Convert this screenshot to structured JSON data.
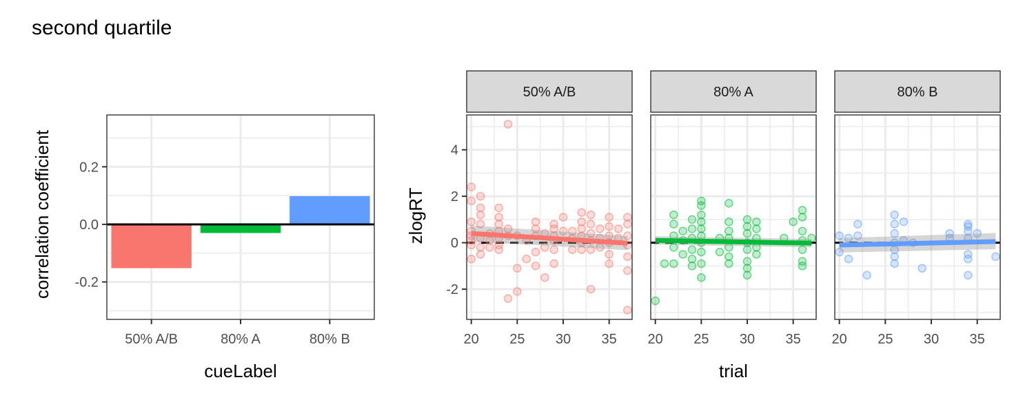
{
  "title": "second quartile",
  "colors": {
    "50% A/B": "#F8766D",
    "80% A": "#00BA38",
    "80% B": "#619CFF"
  },
  "chart_data": [
    {
      "type": "bar",
      "xlabel": "cueLabel",
      "ylabel": "correlation coefficient",
      "categories": [
        "50% A/B",
        "80% A",
        "80% B"
      ],
      "values": [
        -0.152,
        -0.03,
        0.098
      ],
      "ylim": [
        -0.33,
        0.38
      ],
      "yticks": [
        -0.2,
        0.0,
        0.2
      ],
      "ytick_labels": [
        "-0.2",
        "0.0",
        "0.2"
      ],
      "hline": 0,
      "grid": true
    },
    {
      "type": "scatter",
      "xlabel": "trial",
      "ylabel": "zlogRT",
      "xlim": [
        19.5,
        37.5
      ],
      "ylim": [
        -3.3,
        5.5
      ],
      "xticks": [
        20,
        25,
        30,
        35
      ],
      "xtick_labels": [
        "20",
        "25",
        "30",
        "35"
      ],
      "yticks": [
        -2,
        0,
        2,
        4
      ],
      "ytick_labels": [
        "-2",
        "0",
        "2",
        "4"
      ],
      "hline": 0,
      "grid": true,
      "facets": [
        {
          "label": "50% A/B",
          "trend": {
            "x": [
              20,
              37
            ],
            "y": [
              0.4,
              -0.02
            ]
          },
          "band": {
            "upper": [
              0.75,
              0.28
            ],
            "lower": [
              0.05,
              -0.32
            ]
          },
          "points": [
            [
              20,
              2.4
            ],
            [
              20,
              1.8
            ],
            [
              20,
              0.9
            ],
            [
              20,
              0.5
            ],
            [
              20,
              0.1
            ],
            [
              20,
              -0.1
            ],
            [
              20,
              -0.7
            ],
            [
              20,
              0.3
            ],
            [
              21,
              2.0
            ],
            [
              21,
              1.5
            ],
            [
              21,
              0.8
            ],
            [
              21,
              0.2
            ],
            [
              21,
              -0.2
            ],
            [
              21,
              -0.5
            ],
            [
              21,
              1.2
            ],
            [
              22,
              0.4
            ],
            [
              22,
              0.1
            ],
            [
              22,
              -0.2
            ],
            [
              23,
              1.5
            ],
            [
              23,
              1.1
            ],
            [
              23,
              0.8
            ],
            [
              23,
              0.5
            ],
            [
              23,
              0.2
            ],
            [
              23,
              -0.1
            ],
            [
              23,
              -0.3
            ],
            [
              24,
              5.1
            ],
            [
              24,
              0.6
            ],
            [
              24,
              0.3
            ],
            [
              24,
              -2.4
            ],
            [
              25,
              0.3
            ],
            [
              25,
              -1.1
            ],
            [
              25,
              -2.1
            ],
            [
              26,
              0.1
            ],
            [
              26,
              -0.7
            ],
            [
              27,
              0.9
            ],
            [
              27,
              0.6
            ],
            [
              27,
              0.3
            ],
            [
              27,
              -0.4
            ],
            [
              27,
              -1.0
            ],
            [
              28,
              0.4
            ],
            [
              28,
              -0.2
            ],
            [
              28,
              -1.5
            ],
            [
              29,
              0.8
            ],
            [
              29,
              0.6
            ],
            [
              29,
              0.3
            ],
            [
              29,
              0.1
            ],
            [
              29,
              -0.3
            ],
            [
              29,
              -0.9
            ],
            [
              30,
              1.1
            ],
            [
              30,
              0.5
            ],
            [
              31,
              0.5
            ],
            [
              31,
              0.2
            ],
            [
              31,
              -0.3
            ],
            [
              32,
              1.3
            ],
            [
              32,
              0.9
            ],
            [
              32,
              0.6
            ],
            [
              32,
              0.3
            ],
            [
              32,
              0.0
            ],
            [
              32,
              -0.3
            ],
            [
              33,
              1.2
            ],
            [
              33,
              0.8
            ],
            [
              33,
              0.4
            ],
            [
              33,
              0.1
            ],
            [
              33,
              -0.3
            ],
            [
              33,
              -2.0
            ],
            [
              34,
              0.6
            ],
            [
              34,
              0.2
            ],
            [
              34,
              -0.2
            ],
            [
              35,
              1.1
            ],
            [
              35,
              0.7
            ],
            [
              35,
              0.3
            ],
            [
              35,
              0.0
            ],
            [
              35,
              -0.5
            ],
            [
              35,
              -0.9
            ],
            [
              36,
              0.6
            ],
            [
              36,
              0.2
            ],
            [
              37,
              1.1
            ],
            [
              37,
              0.8
            ],
            [
              37,
              0.3
            ],
            [
              37,
              -0.1
            ],
            [
              37,
              -0.6
            ],
            [
              37,
              -1.2
            ],
            [
              37,
              -2.9
            ]
          ]
        },
        {
          "label": "80% A",
          "trend": {
            "x": [
              20,
              37
            ],
            "y": [
              0.1,
              -0.02
            ]
          },
          "band": {
            "upper": [
              0.28,
              0.16
            ],
            "lower": [
              -0.08,
              -0.2
            ]
          },
          "points": [
            [
              20,
              -2.5
            ],
            [
              21,
              -0.9
            ],
            [
              22,
              1.2
            ],
            [
              22,
              0.8
            ],
            [
              22,
              0.3
            ],
            [
              22,
              -0.2
            ],
            [
              22,
              -0.9
            ],
            [
              23,
              0.5
            ],
            [
              23,
              0.1
            ],
            [
              23,
              -0.5
            ],
            [
              24,
              1.0
            ],
            [
              24,
              0.6
            ],
            [
              24,
              0.2
            ],
            [
              24,
              -0.3
            ],
            [
              24,
              -0.7
            ],
            [
              24,
              -1.0
            ],
            [
              25,
              1.8
            ],
            [
              25,
              1.6
            ],
            [
              25,
              1.2
            ],
            [
              25,
              0.9
            ],
            [
              25,
              0.6
            ],
            [
              25,
              0.3
            ],
            [
              25,
              0.0
            ],
            [
              25,
              -0.4
            ],
            [
              25,
              -0.9
            ],
            [
              25,
              -1.5
            ],
            [
              27,
              0.2
            ],
            [
              27,
              -0.4
            ],
            [
              28,
              1.7
            ],
            [
              28,
              0.9
            ],
            [
              28,
              0.5
            ],
            [
              28,
              0.2
            ],
            [
              28,
              -0.2
            ],
            [
              28,
              -0.6
            ],
            [
              28,
              -0.9
            ],
            [
              30,
              1.0
            ],
            [
              30,
              0.7
            ],
            [
              30,
              0.4
            ],
            [
              30,
              0.0
            ],
            [
              30,
              -0.3
            ],
            [
              30,
              -0.8
            ],
            [
              30,
              -1.1
            ],
            [
              30,
              -1.4
            ],
            [
              31,
              0.9
            ],
            [
              31,
              0.6
            ],
            [
              31,
              0.2
            ],
            [
              31,
              -0.2
            ],
            [
              31,
              -0.5
            ],
            [
              34,
              0.2
            ],
            [
              35,
              0.9
            ],
            [
              36,
              1.4
            ],
            [
              36,
              1.1
            ],
            [
              36,
              0.5
            ],
            [
              36,
              0.1
            ],
            [
              36,
              -0.3
            ],
            [
              36,
              -0.8
            ],
            [
              36,
              -1.0
            ],
            [
              37,
              0.2
            ]
          ]
        },
        {
          "label": "80% B",
          "trend": {
            "x": [
              20,
              37
            ],
            "y": [
              -0.1,
              0.05
            ]
          },
          "band": {
            "upper": [
              0.2,
              0.42
            ],
            "lower": [
              -0.42,
              -0.28
            ]
          },
          "points": [
            [
              20,
              0.3
            ],
            [
              20,
              -0.4
            ],
            [
              21,
              0.2
            ],
            [
              21,
              -0.7
            ],
            [
              22,
              0.8
            ],
            [
              22,
              0.3
            ],
            [
              23,
              -1.4
            ],
            [
              26,
              1.2
            ],
            [
              26,
              0.8
            ],
            [
              26,
              0.4
            ],
            [
              26,
              0.0
            ],
            [
              26,
              -0.3
            ],
            [
              26,
              -0.6
            ],
            [
              26,
              -0.9
            ],
            [
              27,
              0.9
            ],
            [
              27,
              0.1
            ],
            [
              28,
              0.0
            ],
            [
              29,
              -1.1
            ],
            [
              32,
              0.4
            ],
            [
              32,
              0.2
            ],
            [
              34,
              0.8
            ],
            [
              34,
              0.7
            ],
            [
              34,
              0.5
            ],
            [
              34,
              0.2
            ],
            [
              34,
              -0.5
            ],
            [
              34,
              -0.7
            ],
            [
              34,
              -1.4
            ],
            [
              35,
              0.4
            ],
            [
              37,
              -0.6
            ]
          ]
        }
      ]
    }
  ]
}
